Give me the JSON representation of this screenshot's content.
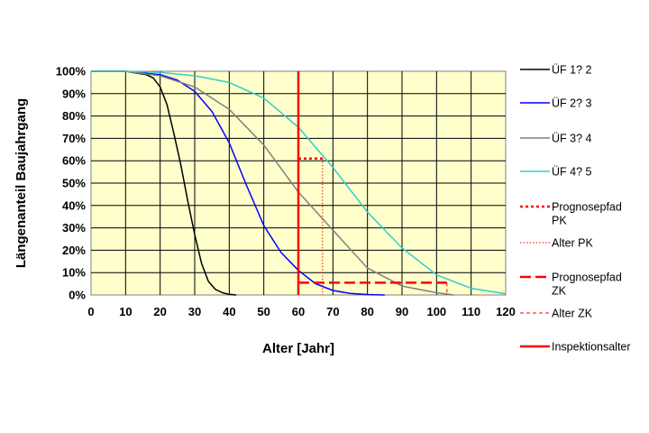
{
  "chart_data": {
    "type": "line",
    "title": "",
    "xlabel": "Alter [Jahr]",
    "ylabel": "Längenanteil Baujahrgang",
    "xlim": [
      0,
      120
    ],
    "ylim": [
      0,
      100
    ],
    "x_ticks": [
      "0",
      "10",
      "20",
      "30",
      "40",
      "50",
      "60",
      "70",
      "80",
      "90",
      "100",
      "110",
      "120"
    ],
    "y_ticks": [
      "0%",
      "10%",
      "20%",
      "30%",
      "40%",
      "50%",
      "60%",
      "70%",
      "80%",
      "90%",
      "100%"
    ],
    "grid": true,
    "legend_position": "right",
    "series": [
      {
        "name": "ÜF 1? 2",
        "color": "#000000",
        "x": [
          0,
          10,
          16,
          18,
          20,
          22,
          24,
          26,
          28,
          30,
          32,
          34,
          36,
          38,
          40,
          42
        ],
        "y": [
          100,
          100,
          98.5,
          97,
          93,
          85,
          72,
          58,
          42,
          27,
          14,
          6,
          2.5,
          1,
          0.3,
          0
        ]
      },
      {
        "name": "ÜF 2? 3",
        "color": "#0000ff",
        "x": [
          0,
          10,
          20,
          25,
          30,
          35,
          40,
          45,
          50,
          55,
          60,
          65,
          70,
          75,
          80,
          85
        ],
        "y": [
          100,
          100,
          98.5,
          96,
          91,
          82,
          68,
          49,
          31,
          19,
          11,
          5,
          2,
          0.7,
          0.2,
          0
        ]
      },
      {
        "name": "ÜF 3? 4",
        "color": "#808080",
        "x": [
          0,
          10,
          20,
          30,
          40,
          50,
          60,
          70,
          80,
          90,
          100,
          105
        ],
        "y": [
          100,
          100,
          98,
          93,
          83,
          67,
          46,
          29,
          12,
          4,
          1,
          0
        ]
      },
      {
        "name": "ÜF 4? 5",
        "color": "#33cccc",
        "x": [
          0,
          10,
          20,
          30,
          40,
          50,
          60,
          70,
          80,
          90,
          100,
          110,
          120
        ],
        "y": [
          100,
          100,
          99.5,
          98,
          95,
          88,
          75,
          57,
          37,
          21,
          9,
          3,
          0.5
        ]
      }
    ],
    "annotations": [
      {
        "name": "Prognosepfad PK",
        "color": "#ff0000",
        "style": "dotted",
        "x": [
          60,
          67
        ],
        "y": [
          61,
          61
        ]
      },
      {
        "name": "Alter PK",
        "color": "#ff0000",
        "style": "thin-dotted",
        "x": [
          67,
          67
        ],
        "y": [
          61,
          0
        ]
      },
      {
        "name": "Prognosepfad ZK",
        "color": "#ff0000",
        "style": "dashed",
        "x": [
          60,
          103
        ],
        "y": [
          5.5,
          5.5
        ]
      },
      {
        "name": "Alter ZK",
        "color": "#ff0000",
        "style": "thin-dashed",
        "x": [
          103,
          103
        ],
        "y": [
          5.5,
          0
        ]
      },
      {
        "name": "Inspektionsalter",
        "color": "#ff0000",
        "style": "solid",
        "x": [
          60,
          60
        ],
        "y": [
          0,
          100
        ]
      }
    ]
  },
  "legend": [
    {
      "label": "ÜF 1? 2",
      "color": "#000000",
      "style": "solid",
      "width": 1.5
    },
    {
      "label": "ÜF 2? 3",
      "color": "#0000ff",
      "style": "solid",
      "width": 1.5
    },
    {
      "label": "ÜF 3? 4",
      "color": "#808080",
      "style": "solid",
      "width": 1.5
    },
    {
      "label": "ÜF 4? 5",
      "color": "#33cccc",
      "style": "solid",
      "width": 1.5
    },
    {
      "label": "Prognosepfad\nPK",
      "color": "#ff0000",
      "style": "dotted",
      "width": 2.5
    },
    {
      "label": "Alter PK",
      "color": "#ff0000",
      "style": "thin-dotted",
      "width": 1
    },
    {
      "label": "Prognosepfad\nZK",
      "color": "#ff0000",
      "style": "dashed",
      "width": 2.5
    },
    {
      "label": "Alter ZK",
      "color": "#ff0000",
      "style": "thin-dashed",
      "width": 1
    },
    {
      "label": "Inspektionsalter",
      "color": "#ff0000",
      "style": "solid",
      "width": 2.5
    }
  ],
  "colors": {
    "plot_background": "#ffffcc",
    "grid": "#000000",
    "frame": "#808080"
  }
}
